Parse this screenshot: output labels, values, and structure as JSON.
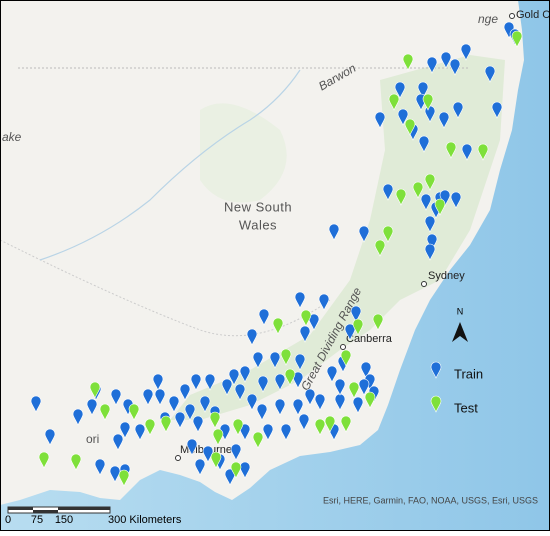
{
  "map": {
    "places": {
      "gold_coast": "Gold C",
      "lake": "ake",
      "barwon": "Barwon",
      "nsw_line1": "New South",
      "nsw_line2": "Wales",
      "sydney": "Sydney",
      "canberra": "Canberra",
      "melbourne": "Melbourne",
      "range": "Great Dividing Range",
      "range_top": "nge",
      "vic": "ori"
    },
    "north": "N",
    "legend": {
      "items": [
        "Train",
        "Test"
      ]
    },
    "scale_bar": {
      "labels": [
        "0",
        "75",
        "150",
        "300 Kilometers"
      ]
    },
    "attribution": "Esri, HERE, Garmin, FAO, NOAA, USGS, Esri, USGS"
  }
}
